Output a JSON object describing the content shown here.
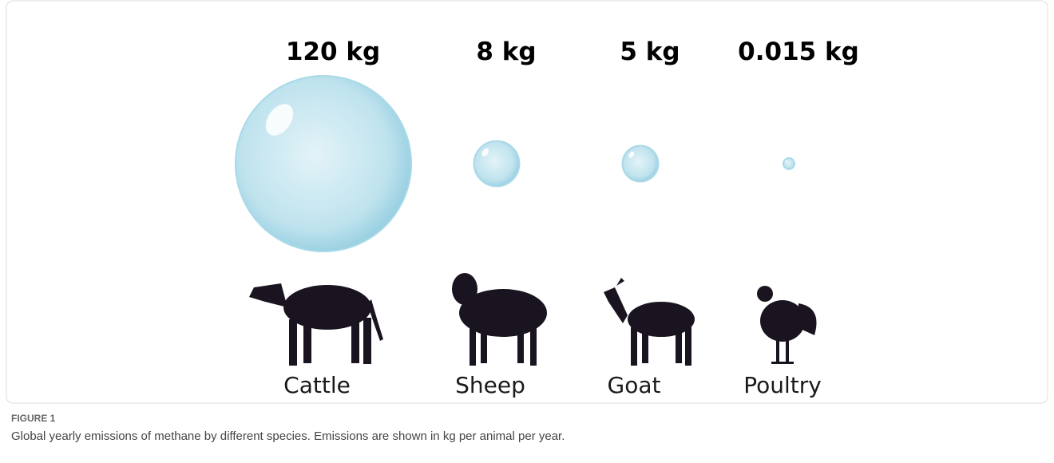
{
  "chart_data": {
    "type": "bubble",
    "categories": [
      "Cattle",
      "Sheep",
      "Goat",
      "Poultry"
    ],
    "values": [
      120,
      8,
      5,
      0.015
    ],
    "value_labels": [
      "120 kg",
      "8 kg",
      "5 kg",
      "0.015 kg"
    ],
    "color": "#a9d9e8"
  },
  "figure": {
    "label": "FIGURE 1",
    "caption": "Global yearly emissions of methane by different species. Emissions are shown in kg per animal per year."
  }
}
